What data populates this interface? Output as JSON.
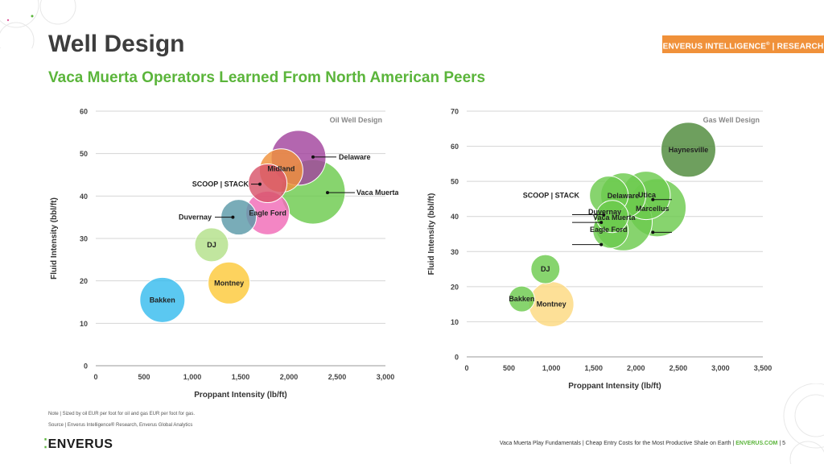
{
  "header": {
    "title": "Well Design",
    "subtitle": "Vaca Muerta Operators Learned From North American Peers",
    "badge_main": "ENVERUS INTELLIGENCE",
    "badge_reg": "®",
    "badge_tail": " | RESEARCH"
  },
  "notes": {
    "note": "Note | Sized by oil EUR per foot for oil and gas EUR per foot for gas.",
    "source": "Source | Enverus Intelligence® Research, Enverus Global Analytics"
  },
  "footer": {
    "logo_text": "ENVERUS",
    "text": "Vaca Muerta Play Fundamentals | Cheap Entry Costs for the Most Productive Shale on Earth | ",
    "site": "ENVERUS.COM",
    "page": " | 5"
  },
  "colors": {
    "accent": "#5bb53b",
    "orange": "#f0913a"
  },
  "chart_data": [
    {
      "type": "scatter",
      "title": "Oil Well Design",
      "xlabel": "Proppant Intensity (lb/ft)",
      "ylabel": "Fluid Intensity (bbl/ft)",
      "xlim": [
        0,
        3000
      ],
      "ylim": [
        0,
        60
      ],
      "xticks": [
        0,
        500,
        1000,
        1500,
        2000,
        2500,
        3000
      ],
      "xtick_labels": [
        "0",
        "500",
        "1,000",
        "1,500",
        "2,000",
        "2,500",
        "3,000"
      ],
      "yticks": [
        0,
        10,
        20,
        30,
        40,
        50,
        60
      ],
      "grid": "horizontal",
      "points": [
        {
          "label": "Vaca Muerta",
          "x": 2250,
          "y": 41,
          "size": 40,
          "color": "#6ccb4e",
          "callout": [
            2400,
            40.8
          ]
        },
        {
          "label": "Delaware",
          "x": 2100,
          "y": 49,
          "size": 34,
          "color": "#a2449e",
          "callout": [
            2250,
            49.2
          ]
        },
        {
          "label": "Midland",
          "x": 1920,
          "y": 46,
          "size": 27,
          "color": "#f0913a"
        },
        {
          "label": "SCOOP | STACK",
          "x": 1780,
          "y": 43,
          "size": 24,
          "color": "#d8546a",
          "callout": [
            1700,
            42.8
          ]
        },
        {
          "label": "Eagle Ford",
          "x": 1780,
          "y": 36,
          "size": 27,
          "color": "#f06bb7"
        },
        {
          "label": "Duvernay",
          "x": 1480,
          "y": 35,
          "size": 22,
          "color": "#5b9aa8",
          "callout": [
            1420,
            35
          ]
        },
        {
          "label": "DJ",
          "x": 1200,
          "y": 28.5,
          "size": 21,
          "color": "#b3e08a"
        },
        {
          "label": "Montney",
          "x": 1380,
          "y": 19.5,
          "size": 26,
          "color": "#fcc93b"
        },
        {
          "label": "Bakken",
          "x": 690,
          "y": 15.5,
          "size": 28,
          "color": "#37bcee"
        }
      ]
    },
    {
      "type": "scatter",
      "title": "Gas Well Design",
      "xlabel": "Proppant Intensity (lb/ft)",
      "ylabel": "Fluid Intensity (bbl/ft)",
      "xlim": [
        0,
        3500
      ],
      "ylim": [
        0,
        70
      ],
      "xticks": [
        0,
        500,
        1000,
        1500,
        2000,
        2500,
        3000,
        3500
      ],
      "xtick_labels": [
        "0",
        "500",
        "1,000",
        "1,500",
        "2,000",
        "2,500",
        "3,000",
        "3,500"
      ],
      "yticks": [
        0,
        10,
        20,
        30,
        40,
        50,
        60,
        70
      ],
      "grid": "horizontal",
      "points": [
        {
          "label": "Haynesville",
          "x": 2620,
          "y": 59,
          "size": 34,
          "color": "#4e8a3a"
        },
        {
          "label": "Marcellus",
          "x": 2250,
          "y": 42.5,
          "size": 36,
          "color": "#6ccb4e",
          "callout": [
            2200,
            35.5
          ]
        },
        {
          "label": "Utica",
          "x": 2120,
          "y": 46,
          "size": 30,
          "color": "#6ccb4e",
          "callout": [
            2200,
            44.8
          ]
        },
        {
          "label": "Delaware",
          "x": 1850,
          "y": 46,
          "size": 28,
          "color": "#6ccb4e"
        },
        {
          "label": "SCOOP | STACK",
          "x": 1680,
          "y": 46,
          "size": 24,
          "color": "#6ccb4e"
        },
        {
          "label": "Duvernay",
          "x": 1720,
          "y": 40,
          "size": 20,
          "color": "#6ccb4e",
          "callout": [
            1620,
            40.5
          ]
        },
        {
          "label": "Vaca Muerta",
          "x": 1850,
          "y": 38.5,
          "size": 36,
          "color": "#6ccb4e",
          "callout": [
            1590,
            38.3
          ]
        },
        {
          "label": "Eagle Ford",
          "x": 1700,
          "y": 36,
          "size": 22,
          "color": "#6ccb4e",
          "callout": [
            1590,
            32
          ]
        },
        {
          "label": "DJ",
          "x": 930,
          "y": 25,
          "size": 18,
          "color": "#6ccb4e"
        },
        {
          "label": "Bakken",
          "x": 650,
          "y": 16.5,
          "size": 16,
          "color": "#6ccb4e"
        },
        {
          "label": "Montney",
          "x": 1000,
          "y": 15,
          "size": 28,
          "color": "#fcd980"
        }
      ]
    }
  ]
}
